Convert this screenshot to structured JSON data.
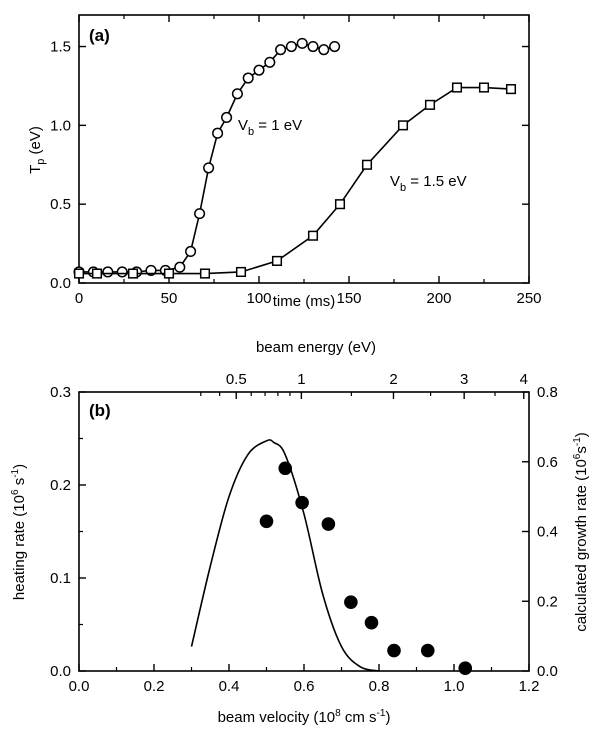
{
  "chart_data": [
    {
      "panel": "(a)",
      "type": "line",
      "xlabel": "time (ms)",
      "ylabel_main": "T",
      "ylabel_sub": "p",
      "ylabel_unit": " (eV)",
      "xlim": [
        0,
        250
      ],
      "ylim": [
        0,
        1.7
      ],
      "xticks": [
        0,
        50,
        100,
        150,
        200,
        250
      ],
      "yticks": [
        0.0,
        0.5,
        1.0,
        1.5
      ],
      "ytick_labels": [
        "0.0",
        "0.5",
        "1.0",
        "1.5"
      ],
      "series": [
        {
          "name": "Vb = 1 eV",
          "label_main": "V",
          "label_sub": "b",
          "label_rest": " = 1 eV",
          "marker": "circle",
          "x": [
            0,
            8,
            16,
            24,
            32,
            40,
            48,
            56,
            62,
            67,
            72,
            77,
            82,
            88,
            94,
            100,
            106,
            112,
            118,
            124,
            130,
            136,
            142
          ],
          "y": [
            0.07,
            0.07,
            0.07,
            0.07,
            0.07,
            0.08,
            0.08,
            0.1,
            0.2,
            0.44,
            0.73,
            0.95,
            1.05,
            1.2,
            1.3,
            1.35,
            1.4,
            1.48,
            1.5,
            1.52,
            1.5,
            1.48,
            1.5
          ]
        },
        {
          "name": "Vb = 1.5 eV",
          "label_main": "V",
          "label_sub": "b",
          "label_rest": " = 1.5 eV",
          "marker": "square",
          "x": [
            0,
            10,
            30,
            50,
            70,
            90,
            110,
            130,
            145,
            160,
            180,
            195,
            210,
            225,
            240
          ],
          "y": [
            0.06,
            0.06,
            0.06,
            0.06,
            0.06,
            0.07,
            0.14,
            0.3,
            0.5,
            0.75,
            1.0,
            1.13,
            1.24,
            1.24,
            1.23
          ]
        }
      ]
    },
    {
      "panel": "(b)",
      "type": "scatter",
      "xlabel_main": "beam velocity (10",
      "xlabel_sup": "8",
      "xlabel_mid": " cm s",
      "xlabel_sup2": "-1",
      "xlabel_end": ")",
      "top_xlabel": "beam energy (eV)",
      "ylabel_main": "heating rate (10",
      "ylabel_sup": "6",
      "ylabel_mid": " s",
      "ylabel_sup2": "-1",
      "ylabel_end": ")",
      "y2label_main": "calculated growth rate (10",
      "y2label_sup": "6",
      "y2label_mid": "s",
      "y2label_sup2": "-1",
      "y2label_end": ")",
      "xlim": [
        0.0,
        1.2
      ],
      "ylim": [
        0.0,
        0.3
      ],
      "y2lim": [
        0.0,
        0.8
      ],
      "xticks": [
        0.0,
        0.2,
        0.4,
        0.6,
        0.8,
        1.0,
        1.2
      ],
      "xtick_labels": [
        "0.0",
        "0.2",
        "0.4",
        "0.6",
        "0.8",
        "1.0",
        "1.2"
      ],
      "yticks": [
        0.0,
        0.1,
        0.2,
        0.3
      ],
      "ytick_labels": [
        "0.0",
        "0.1",
        "0.2",
        "0.3"
      ],
      "y2ticks": [
        0.0,
        0.2,
        0.4,
        0.6,
        0.8
      ],
      "y2tick_labels": [
        "0.0",
        "0.2",
        "0.4",
        "0.6",
        "0.8"
      ],
      "top_ticks": [
        0.5,
        1,
        2,
        3,
        4
      ],
      "top_tick_labels": [
        "0.5",
        "1",
        "2",
        "3",
        "4"
      ],
      "series": [
        {
          "name": "heating rate",
          "marker": "filled-circle",
          "x": [
            0.5,
            0.55,
            0.595,
            0.665,
            0.725,
            0.78,
            0.84,
            0.93,
            1.03
          ],
          "y": [
            0.161,
            0.218,
            0.181,
            0.158,
            0.074,
            0.052,
            0.022,
            0.022,
            0.003
          ]
        },
        {
          "name": "calculated growth rate",
          "marker": "none",
          "axis": "right",
          "x": [
            0.3,
            0.35,
            0.4,
            0.45,
            0.5,
            0.52,
            0.55,
            0.6,
            0.65,
            0.7,
            0.75,
            0.8
          ],
          "y": [
            0.07,
            0.3,
            0.5,
            0.62,
            0.66,
            0.655,
            0.62,
            0.45,
            0.22,
            0.07,
            0.012,
            0.0
          ]
        }
      ]
    }
  ]
}
